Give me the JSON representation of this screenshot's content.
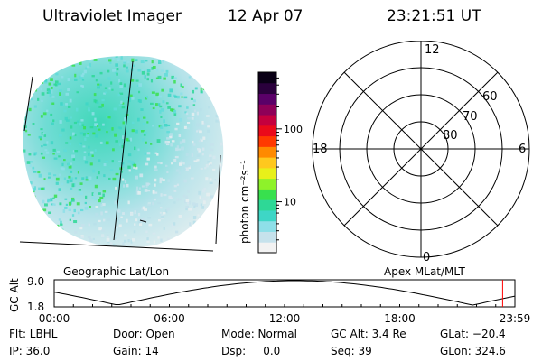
{
  "header": {
    "instrument": "Ultraviolet Imager",
    "date": "12 Apr 07",
    "time": "23:21:51 UT"
  },
  "colorbar": {
    "label": "photon cm⁻²s⁻¹",
    "tick_labels": [
      "100",
      "10"
    ],
    "tick_values": [
      100,
      10
    ],
    "range": [
      2,
      600
    ],
    "scale": "log",
    "colors": [
      "#f2f2f2",
      "#c6e2ec",
      "#8edfe8",
      "#3ed6c6",
      "#2ed896",
      "#38e04e",
      "#8ef22a",
      "#e8f01a",
      "#ffc81e",
      "#ff8a00",
      "#ff3a00",
      "#ea0a1a",
      "#c4003e",
      "#8e0058",
      "#5a0068",
      "#2a003c",
      "#0a0016"
    ]
  },
  "polar_plot": {
    "mlt_labels": {
      "top": "12",
      "left": "18",
      "right": "6",
      "bottom": "0"
    },
    "lat_labels": [
      "60",
      "70",
      "80"
    ]
  },
  "labels": {
    "left_projection": "Geographic Lat/Lon",
    "right_projection": "Apex MLat/MLT"
  },
  "orbit_plot": {
    "y_axis_label": "GC Alt",
    "y_ticks": [
      "9.0",
      "1.8"
    ],
    "x_ticks": [
      "00:00",
      "06:00",
      "12:00",
      "18:00",
      "23:59"
    ],
    "current_time_marker_hours": 23.36,
    "marker_color": "#ff0000"
  },
  "status": {
    "filter": "Flt: LBHL",
    "ip": "IP: 36.0",
    "door": "Door: Open",
    "gain": "Gain: 14",
    "mode": "Mode: Normal",
    "dsp": "Dsp:     0.0",
    "gc_alt": "GC Alt: 3.4 Re",
    "seq": "Seq: 39",
    "glat": "GLat: −20.4",
    "glon": "GLon: 324.6"
  }
}
